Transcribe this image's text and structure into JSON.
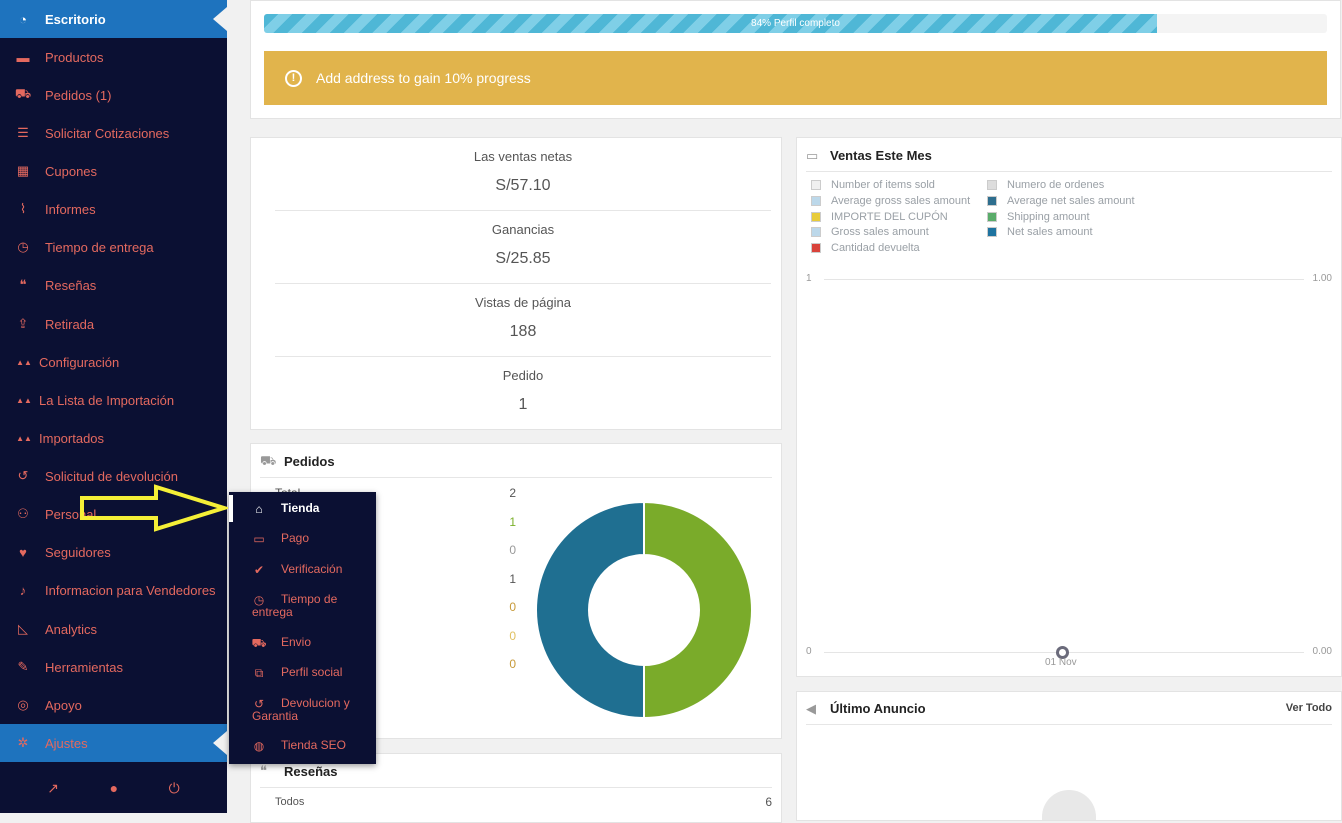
{
  "sidebar": {
    "items": [
      {
        "label": "Escritorio",
        "icon": "dashboard-icon",
        "glyph": "◔"
      },
      {
        "label": "Productos",
        "icon": "briefcase-icon",
        "glyph": "▬"
      },
      {
        "label": "Pedidos (1)",
        "icon": "cart-icon",
        "glyph": "⛟"
      },
      {
        "label": "Solicitar Cotizaciones",
        "icon": "list-icon",
        "glyph": "☰"
      },
      {
        "label": "Cupones",
        "icon": "gift-icon",
        "glyph": "▦"
      },
      {
        "label": "Informes",
        "icon": "chart-line-icon",
        "glyph": "⌇"
      },
      {
        "label": "Tiempo de entrega",
        "icon": "clock-icon",
        "glyph": "◷"
      },
      {
        "label": "Reseñas",
        "icon": "comments-icon",
        "glyph": "❝"
      },
      {
        "label": "Retirada",
        "icon": "upload-icon",
        "glyph": "⇪"
      },
      {
        "label": "Configuración",
        "icon": "aliexpress-logo-icon",
        "glyph": "▲▲"
      },
      {
        "label": "La Lista de Importación",
        "icon": "aliexpress-logo-icon",
        "glyph": "▲▲"
      },
      {
        "label": "Importados",
        "icon": "aliexpress-logo-icon",
        "glyph": "▲▲"
      },
      {
        "label": "Solicitud de devolución",
        "icon": "undo-icon",
        "glyph": "↺"
      },
      {
        "label": "Personal",
        "icon": "users-icon",
        "glyph": "⚇"
      },
      {
        "label": "Seguidores",
        "icon": "heart-icon",
        "glyph": "♥"
      },
      {
        "label": "Informacion para Vendedores",
        "icon": "bell-icon",
        "glyph": "♪"
      },
      {
        "label": "Analytics",
        "icon": "area-chart-icon",
        "glyph": "◺"
      },
      {
        "label": "Herramientas",
        "icon": "wrench-icon",
        "glyph": "✎"
      },
      {
        "label": "Apoyo",
        "icon": "lifebuoy-icon",
        "glyph": "◎"
      },
      {
        "label": "Ajustes",
        "icon": "cog-icon",
        "glyph": "✲"
      }
    ],
    "footer": [
      {
        "icon": "external-link-icon",
        "glyph": "↗"
      },
      {
        "icon": "user-icon",
        "glyph": "●"
      },
      {
        "icon": "power-icon",
        "glyph": "⏻"
      }
    ]
  },
  "profile": {
    "progress_label": "84% Perfil completo",
    "progress": 0.84
  },
  "alert": {
    "text": "Add address  to gain 10% progress"
  },
  "stats": [
    {
      "label": "Las ventas netas",
      "value": "S/57.10"
    },
    {
      "label": "Ganancias",
      "value": "S/25.85"
    },
    {
      "label": "Vistas de página",
      "value": "188"
    },
    {
      "label": "Pedido",
      "value": "1"
    }
  ],
  "orders": {
    "title": "Pedidos",
    "first_label": "Total",
    "values": [
      {
        "v": "2",
        "color": "#555555"
      },
      {
        "v": "1",
        "color": "#7ab02a"
      },
      {
        "v": "0",
        "color": "#999999"
      },
      {
        "v": "1",
        "color": "#555555"
      },
      {
        "v": "0",
        "color": "#c79a3a"
      },
      {
        "v": "0",
        "color": "#e0c060"
      },
      {
        "v": "0",
        "color": "#c79a3a"
      }
    ]
  },
  "reviews": {
    "title": "Reseñas",
    "row_label": "Todos",
    "row_value": "6"
  },
  "sales": {
    "title": "Ventas Este Mes",
    "legend": [
      {
        "label": "Number of items sold",
        "color": "#f0f0f0"
      },
      {
        "label": "Numero de ordenes",
        "color": "#dddddd"
      },
      {
        "label": "Average gross sales amount",
        "color": "#bcd8ea"
      },
      {
        "label": "Average net sales amount",
        "color": "#2e6e8e"
      },
      {
        "label": "IMPORTE DEL CUPÓN",
        "color": "#e8cc3a"
      },
      {
        "label": "Shipping amount",
        "color": "#5aac6a"
      },
      {
        "label": "Gross sales amount",
        "color": "#bcd8ea"
      },
      {
        "label": "Net sales amount",
        "color": "#1e73a0"
      },
      {
        "label": "Cantidad devuelta",
        "color": "#d9433b"
      }
    ],
    "y_left_top": "1",
    "y_right_top": "1.00",
    "y_left_bottom": "0",
    "y_right_bottom": "0.00",
    "x_label": "01 Nov"
  },
  "announcement": {
    "title": "Último Anuncio",
    "link": "Ver Todo"
  },
  "chart_data": {
    "type": "pie",
    "categories": [
      "",
      ""
    ],
    "values": [
      1,
      1
    ],
    "colors": [
      "#7aab2a",
      "#1f6f91"
    ]
  },
  "submenu": {
    "items": [
      {
        "label": "Tienda",
        "icon": "bank-icon",
        "glyph": "⌂"
      },
      {
        "label": "Pago",
        "icon": "credit-card-icon",
        "glyph": "▭"
      },
      {
        "label": "Verificación",
        "icon": "check-icon",
        "glyph": "✔"
      },
      {
        "label": "Tiempo de entrega",
        "icon": "clock-icon",
        "glyph": "◷"
      },
      {
        "label": "Envio",
        "icon": "truck-icon",
        "glyph": "⛟"
      },
      {
        "label": "Perfil social",
        "icon": "share-icon",
        "glyph": "⧉"
      },
      {
        "label": "Devolucion y Garantia",
        "icon": "undo-icon",
        "glyph": "↺"
      },
      {
        "label": "Tienda SEO",
        "icon": "globe-icon",
        "glyph": "◍"
      }
    ]
  }
}
